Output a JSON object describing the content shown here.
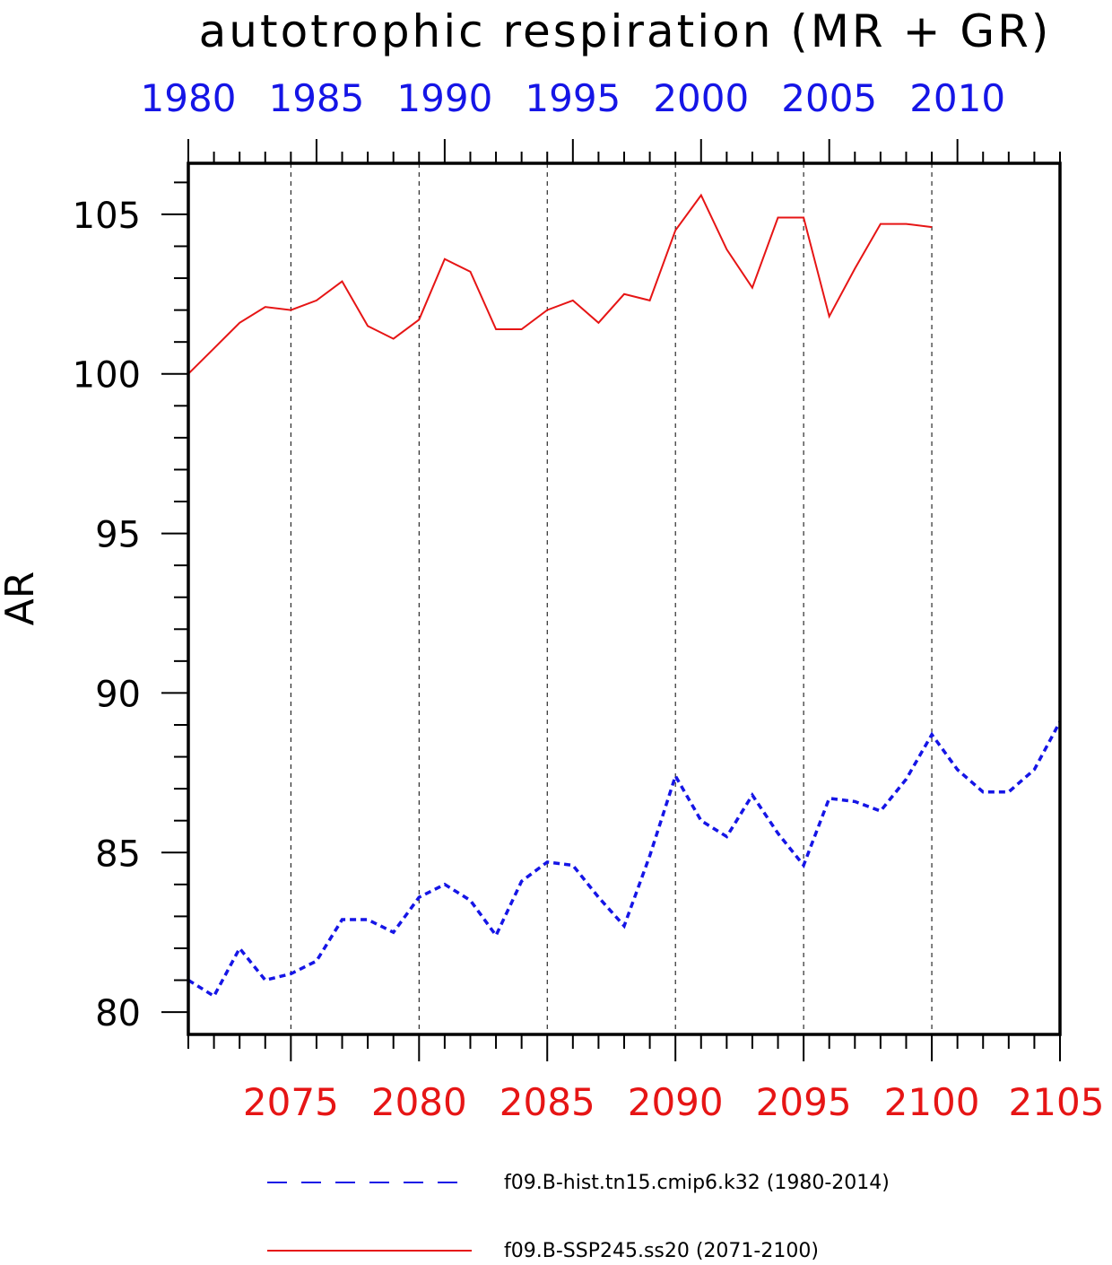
{
  "chart_data": {
    "type": "line",
    "title": "autotrophic respiration (MR + GR)",
    "ylabel": "AR",
    "ylim": [
      79.3,
      106.6
    ],
    "yticks": [
      80,
      85,
      90,
      95,
      100,
      105
    ],
    "grid": "vertical dashed lines at bottom-axis major ticks",
    "bottom_axis": {
      "range": [
        2071,
        2105
      ],
      "tick_labels": [
        "2075",
        "2080",
        "2085",
        "2090",
        "2095",
        "2100",
        "2105"
      ],
      "color": "#e61515"
    },
    "top_axis": {
      "range": [
        1980,
        2014
      ],
      "tick_labels": [
        "1980",
        "1985",
        "1990",
        "1995",
        "2000",
        "2005",
        "2010"
      ],
      "color": "#1515e6"
    },
    "series": [
      {
        "name": "f09.B-hist.tn15.cmip6.k32 (1980-2014)",
        "axis": "top",
        "color": "#1515e6",
        "style": "dashed",
        "x": [
          1980,
          1981,
          1982,
          1983,
          1984,
          1985,
          1986,
          1987,
          1988,
          1989,
          1990,
          1991,
          1992,
          1993,
          1994,
          1995,
          1996,
          1997,
          1998,
          1999,
          2000,
          2001,
          2002,
          2003,
          2004,
          2005,
          2006,
          2007,
          2008,
          2009,
          2010,
          2011,
          2012,
          2013,
          2014
        ],
        "values": [
          81.0,
          80.5,
          82.0,
          81.0,
          81.2,
          81.6,
          82.9,
          82.9,
          82.5,
          83.6,
          84.0,
          83.5,
          82.4,
          84.1,
          84.7,
          84.6,
          83.6,
          82.7,
          84.9,
          87.4,
          86.0,
          85.5,
          86.8,
          85.6,
          84.6,
          86.7,
          86.6,
          86.3,
          87.3,
          88.7,
          87.6,
          86.9,
          86.9,
          87.6,
          89.1
        ]
      },
      {
        "name": "f09.B-SSP245.ss20 (2071-2100)",
        "axis": "bottom",
        "color": "#e61515",
        "style": "solid",
        "x": [
          2071,
          2072,
          2073,
          2074,
          2075,
          2076,
          2077,
          2078,
          2079,
          2080,
          2081,
          2082,
          2083,
          2084,
          2085,
          2086,
          2087,
          2088,
          2089,
          2090,
          2091,
          2092,
          2093,
          2094,
          2095,
          2096,
          2097,
          2098,
          2099,
          2100
        ],
        "values": [
          100.0,
          100.8,
          101.6,
          102.1,
          102.0,
          102.3,
          102.9,
          101.5,
          101.1,
          101.7,
          103.6,
          103.2,
          101.4,
          101.4,
          102.0,
          102.3,
          101.6,
          102.5,
          102.3,
          104.5,
          105.6,
          103.9,
          102.7,
          104.9,
          104.9,
          101.8,
          103.3,
          104.7,
          104.7,
          104.6
        ]
      }
    ],
    "legend": {
      "placement": "bottom",
      "entries": [
        {
          "label": "f09.B-hist.tn15.cmip6.k32 (1980-2014)",
          "color": "#1515e6",
          "style": "dashed"
        },
        {
          "label": "f09.B-SSP245.ss20 (2071-2100)",
          "color": "#e61515",
          "style": "solid"
        }
      ]
    }
  }
}
